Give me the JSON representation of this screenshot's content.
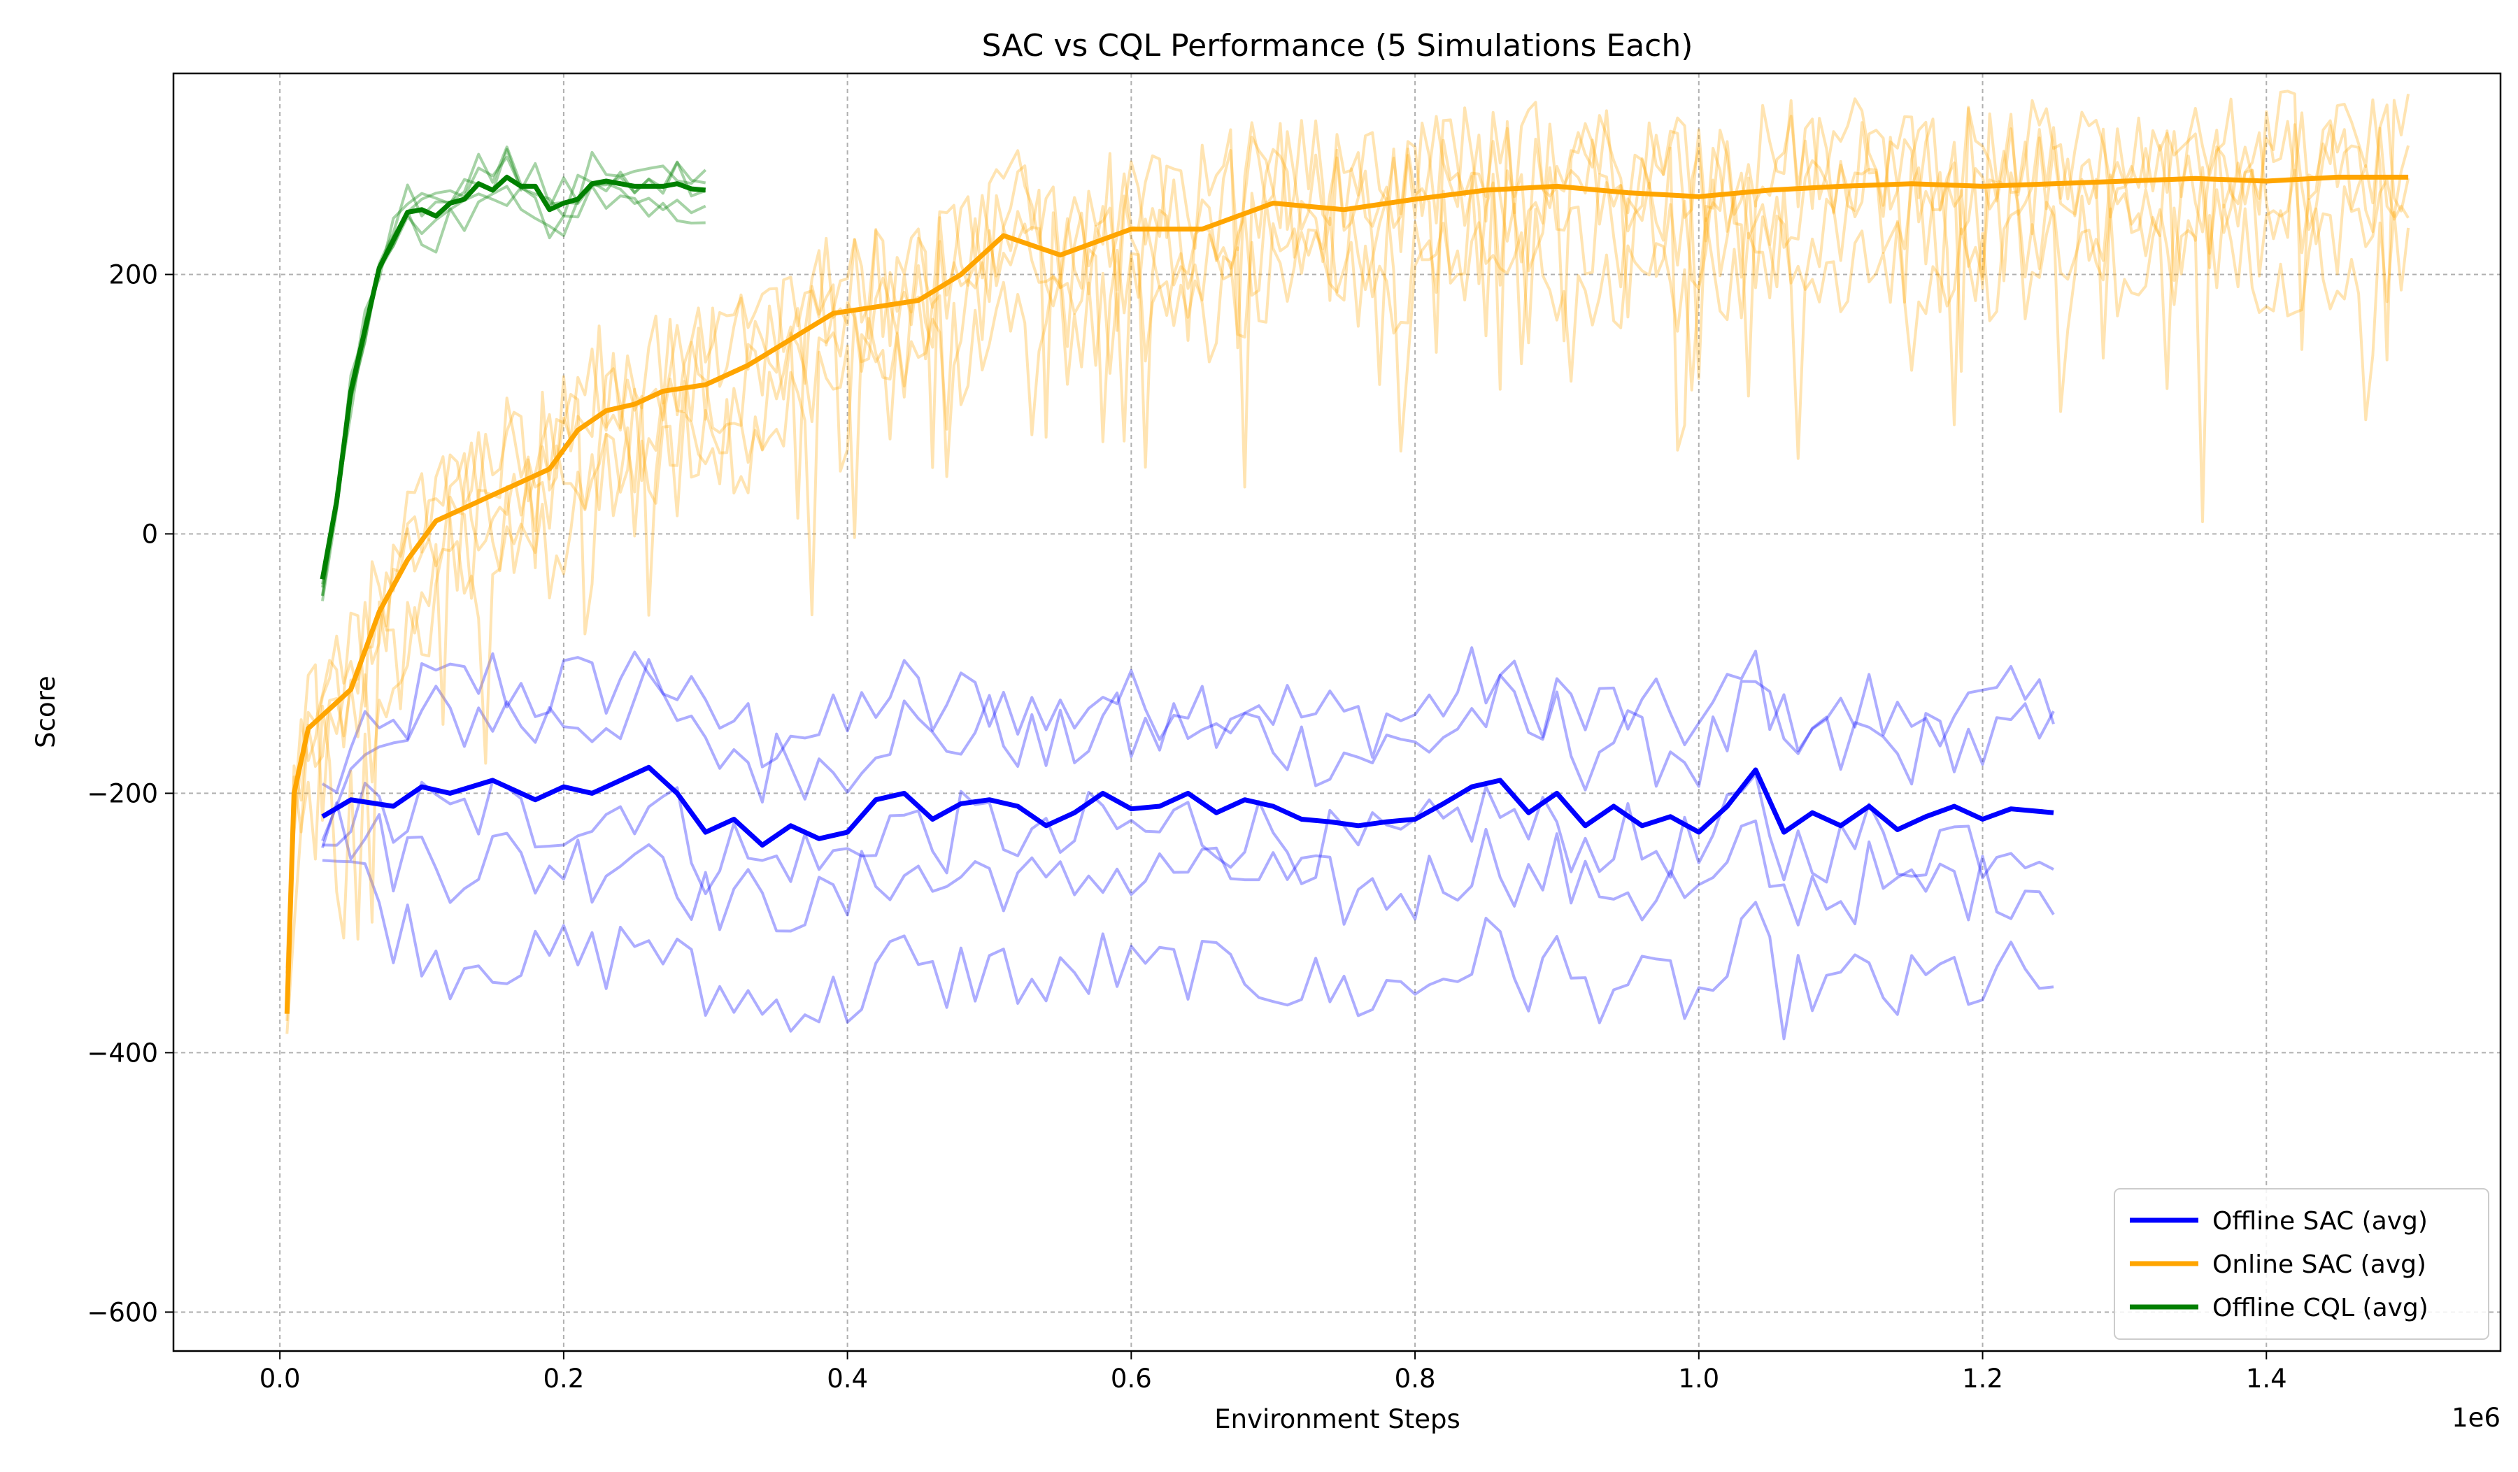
{
  "chart_data": {
    "type": "line",
    "title": "SAC vs CQL Performance (5 Simulations Each)",
    "xlabel": "Environment Steps",
    "ylabel": "Score",
    "x_offset_label": "1e6",
    "xlim": [
      -0.075,
      1.565
    ],
    "ylim": [
      -630,
      355
    ],
    "x_ticks": [
      0.0,
      0.2,
      0.4,
      0.6,
      0.8,
      1.0,
      1.2,
      1.4
    ],
    "x_tick_labels": [
      "0.0",
      "0.2",
      "0.4",
      "0.6",
      "0.8",
      "1.0",
      "1.2",
      "1.4"
    ],
    "y_ticks": [
      -600,
      -400,
      -200,
      0,
      200
    ],
    "y_tick_labels": [
      "−600",
      "−400",
      "−200",
      "0",
      "200"
    ],
    "grid": true,
    "legend_position": "lower-right",
    "colors": {
      "offline_sac": "#0000ff",
      "online_sac": "#ffa500",
      "offline_cql": "#008000"
    },
    "series": [
      {
        "name": "Offline SAC (avg)",
        "color": "#0000ff",
        "x": [
          0.03,
          0.05,
          0.08,
          0.1,
          0.12,
          0.15,
          0.18,
          0.2,
          0.22,
          0.24,
          0.26,
          0.28,
          0.3,
          0.32,
          0.34,
          0.36,
          0.38,
          0.4,
          0.42,
          0.44,
          0.46,
          0.48,
          0.5,
          0.52,
          0.54,
          0.56,
          0.58,
          0.6,
          0.62,
          0.64,
          0.66,
          0.68,
          0.7,
          0.72,
          0.74,
          0.76,
          0.78,
          0.8,
          0.82,
          0.84,
          0.86,
          0.88,
          0.9,
          0.92,
          0.94,
          0.96,
          0.98,
          1.0,
          1.02,
          1.04,
          1.06,
          1.08,
          1.1,
          1.12,
          1.14,
          1.16,
          1.18,
          1.2,
          1.22,
          1.25
        ],
        "y": [
          -218,
          -205,
          -210,
          -195,
          -200,
          -190,
          -205,
          -195,
          -200,
          -190,
          -180,
          -200,
          -230,
          -220,
          -240,
          -225,
          -235,
          -230,
          -205,
          -200,
          -220,
          -208,
          -205,
          -210,
          -225,
          -215,
          -200,
          -212,
          -210,
          -200,
          -215,
          -205,
          -210,
          -220,
          -222,
          -225,
          -222,
          -220,
          -208,
          -195,
          -190,
          -215,
          -200,
          -225,
          -210,
          -225,
          -218,
          -230,
          -210,
          -182,
          -230,
          -215,
          -225,
          -210,
          -228,
          -218,
          -210,
          -220,
          -212,
          -215
        ]
      },
      {
        "name": "Online SAC (avg)",
        "color": "#ffa500",
        "x": [
          0.005,
          0.01,
          0.02,
          0.03,
          0.05,
          0.07,
          0.09,
          0.11,
          0.13,
          0.15,
          0.17,
          0.19,
          0.21,
          0.23,
          0.25,
          0.27,
          0.3,
          0.33,
          0.36,
          0.39,
          0.42,
          0.45,
          0.48,
          0.51,
          0.55,
          0.6,
          0.65,
          0.7,
          0.75,
          0.8,
          0.85,
          0.9,
          0.95,
          1.0,
          1.05,
          1.1,
          1.15,
          1.2,
          1.25,
          1.3,
          1.35,
          1.4,
          1.45,
          1.5
        ],
        "y": [
          -370,
          -200,
          -150,
          -140,
          -120,
          -60,
          -20,
          10,
          20,
          30,
          40,
          50,
          80,
          95,
          100,
          110,
          115,
          130,
          150,
          170,
          175,
          180,
          200,
          230,
          215,
          235,
          235,
          255,
          250,
          258,
          265,
          268,
          263,
          260,
          265,
          268,
          270,
          268,
          270,
          272,
          274,
          272,
          275,
          275
        ]
      },
      {
        "name": "Offline CQL (avg)",
        "color": "#008000",
        "x": [
          0.03,
          0.04,
          0.05,
          0.07,
          0.09,
          0.1,
          0.11,
          0.12,
          0.13,
          0.14,
          0.15,
          0.16,
          0.17,
          0.18,
          0.19,
          0.2,
          0.21,
          0.22,
          0.23,
          0.24,
          0.25,
          0.26,
          0.27,
          0.28,
          0.29,
          0.3
        ],
        "y": [
          -35,
          25,
          110,
          205,
          248,
          250,
          245,
          255,
          258,
          270,
          265,
          275,
          268,
          268,
          250,
          255,
          258,
          270,
          272,
          270,
          268,
          268,
          268,
          270,
          266,
          265
        ]
      }
    ]
  }
}
